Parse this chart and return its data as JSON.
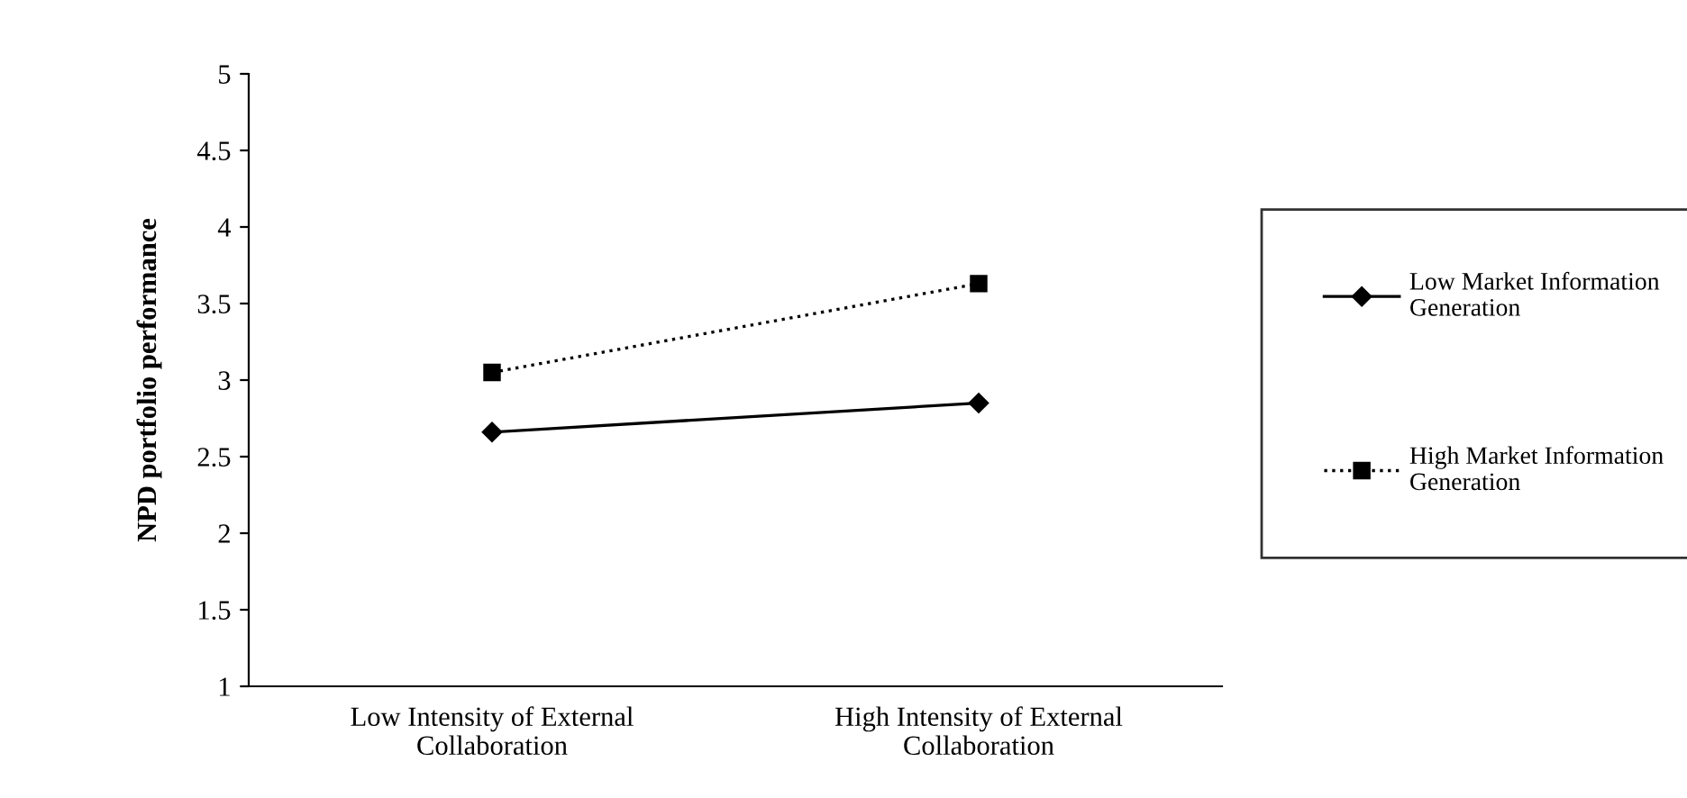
{
  "chart_data": {
    "type": "line",
    "ylabel": "NPD portfolio performance",
    "categories": [
      "Low Intensity of External\nCollaboration",
      "High Intensity of External\nCollaboration"
    ],
    "series": [
      {
        "name": "Low Market Information\nGeneration",
        "color": "#000000",
        "values": [
          2.66,
          2.85
        ],
        "marker": "diamond",
        "line_style": "solid"
      },
      {
        "name": "High Market Information\nGeneration",
        "color": "#000000",
        "values": [
          3.05,
          3.63
        ],
        "marker": "square",
        "line_style": "dotted"
      }
    ],
    "ylim": [
      1,
      5
    ],
    "yticks": [
      1,
      1.5,
      2,
      2.5,
      3,
      3.5,
      4,
      4.5,
      5
    ],
    "grid": false,
    "legend": "right"
  }
}
